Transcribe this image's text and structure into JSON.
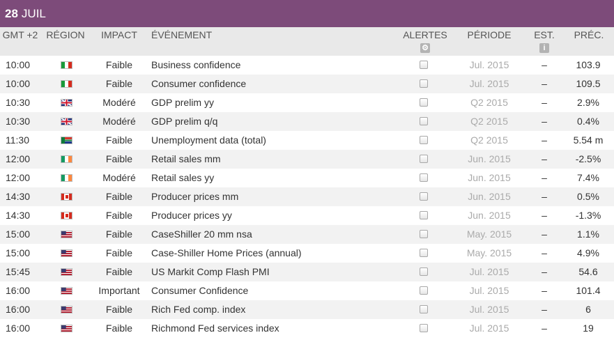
{
  "date_header": {
    "day": "28",
    "month": "JUIL"
  },
  "columns": {
    "time": "GMT +2",
    "region": "RÉGION",
    "impact": "IMPACT",
    "event": "ÉVÉNEMENT",
    "alerts": "ALERTES",
    "period": "PÉRIODE",
    "est": "EST.",
    "prec": "PRÉC."
  },
  "header_icons": {
    "alerts": "gear-icon",
    "est": "info-icon"
  },
  "rows": [
    {
      "time": "10:00",
      "flag": "it",
      "impact": "Faible",
      "event": "Business confidence",
      "period": "Jul. 2015",
      "est": "–",
      "prec": "103.9"
    },
    {
      "time": "10:00",
      "flag": "it",
      "impact": "Faible",
      "event": "Consumer confidence",
      "period": "Jul. 2015",
      "est": "–",
      "prec": "109.5"
    },
    {
      "time": "10:30",
      "flag": "gb",
      "impact": "Modéré",
      "event": "GDP prelim yy",
      "period": "Q2 2015",
      "est": "–",
      "prec": "2.9%"
    },
    {
      "time": "10:30",
      "flag": "gb",
      "impact": "Modéré",
      "event": "GDP prelim q/q",
      "period": "Q2 2015",
      "est": "–",
      "prec": "0.4%"
    },
    {
      "time": "11:30",
      "flag": "za",
      "impact": "Faible",
      "event": "Unemployment data (total)",
      "period": "Q2 2015",
      "est": "–",
      "prec": "5.54 m"
    },
    {
      "time": "12:00",
      "flag": "ie",
      "impact": "Faible",
      "event": "Retail sales mm",
      "period": "Jun. 2015",
      "est": "–",
      "prec": "-2.5%"
    },
    {
      "time": "12:00",
      "flag": "ie",
      "impact": "Modéré",
      "event": "Retail sales yy",
      "period": "Jun. 2015",
      "est": "–",
      "prec": "7.4%"
    },
    {
      "time": "14:30",
      "flag": "ca",
      "impact": "Faible",
      "event": "Producer prices mm",
      "period": "Jun. 2015",
      "est": "–",
      "prec": "0.5%"
    },
    {
      "time": "14:30",
      "flag": "ca",
      "impact": "Faible",
      "event": "Producer prices yy",
      "period": "Jun. 2015",
      "est": "–",
      "prec": "-1.3%"
    },
    {
      "time": "15:00",
      "flag": "us",
      "impact": "Faible",
      "event": "CaseShiller 20 mm nsa",
      "period": "May. 2015",
      "est": "–",
      "prec": "1.1%"
    },
    {
      "time": "15:00",
      "flag": "us",
      "impact": "Faible",
      "event": "Case-Shiller Home Prices (annual)",
      "period": "May. 2015",
      "est": "–",
      "prec": "4.9%"
    },
    {
      "time": "15:45",
      "flag": "us",
      "impact": "Faible",
      "event": "US Markit Comp Flash PMI",
      "period": "Jul. 2015",
      "est": "–",
      "prec": "54.6"
    },
    {
      "time": "16:00",
      "flag": "us",
      "impact": "Important",
      "event": "Consumer Confidence",
      "period": "Jul. 2015",
      "est": "–",
      "prec": "101.4"
    },
    {
      "time": "16:00",
      "flag": "us",
      "impact": "Faible",
      "event": "Rich Fed comp. index",
      "period": "Jul. 2015",
      "est": "–",
      "prec": "6"
    },
    {
      "time": "16:00",
      "flag": "us",
      "impact": "Faible",
      "event": "Richmond Fed services index",
      "period": "Jul. 2015",
      "est": "–",
      "prec": "19"
    }
  ]
}
